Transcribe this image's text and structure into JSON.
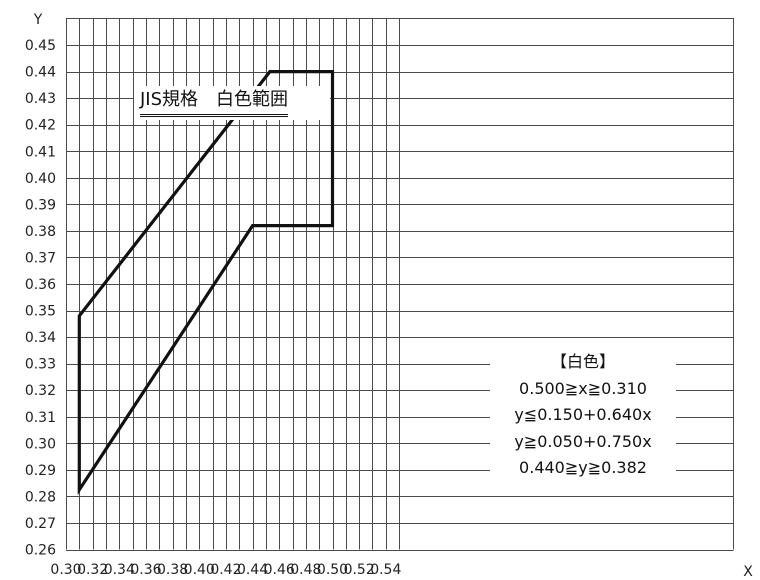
{
  "chart_data": {
    "type": "line",
    "title": "JIS規格　白色範囲",
    "xlabel": "X",
    "ylabel": "Y",
    "xlim": [
      0.3,
      0.55
    ],
    "ylim": [
      0.26,
      0.45
    ],
    "grid": true,
    "x_ticks": [
      "0.30",
      "0.32",
      "0.34",
      "0.36",
      "0.38",
      "0.40",
      "0.42",
      "0.44",
      "0.46",
      "0.48",
      "0.50",
      "0.52",
      "0.54"
    ],
    "y_ticks": [
      "0.26",
      "0.27",
      "0.28",
      "0.29",
      "0.30",
      "0.31",
      "0.32",
      "0.33",
      "0.34",
      "0.35",
      "0.36",
      "0.37",
      "0.38",
      "0.39",
      "0.40",
      "0.41",
      "0.42",
      "0.43",
      "0.44",
      "0.45"
    ],
    "series": [
      {
        "x": [
          0.31,
          0.31,
          0.44,
          0.5,
          0.5,
          0.453,
          0.31
        ],
        "y": [
          0.348,
          0.2825,
          0.382,
          0.382,
          0.44,
          0.44,
          0.348
        ]
      }
    ],
    "legend": {
      "heading": "【白色】",
      "lines": [
        "0.500≧x≧0.310",
        "y≦0.150+0.640x",
        "y≧0.050+0.750x",
        "0.440≧y≧0.382"
      ]
    }
  }
}
